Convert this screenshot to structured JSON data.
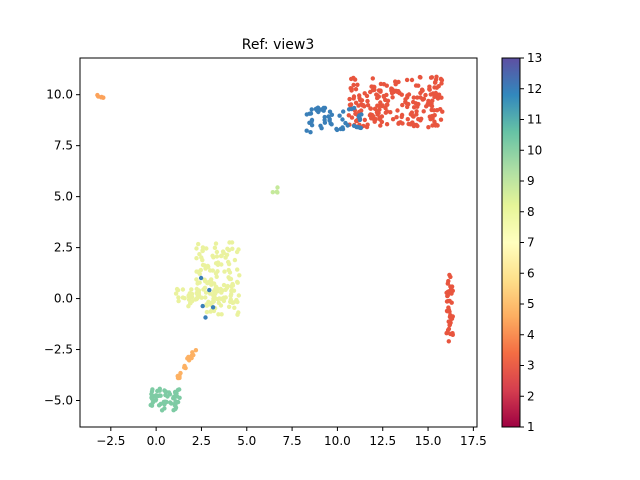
{
  "chart_data": {
    "type": "scatter",
    "title": "Ref: view3",
    "xlabel": "",
    "ylabel": "",
    "xlim": [
      -4.2,
      17.7
    ],
    "ylim": [
      -6.3,
      11.8
    ],
    "xticks": [
      -2.5,
      0.0,
      2.5,
      5.0,
      7.5,
      10.0,
      12.5,
      15.0,
      17.5
    ],
    "xtick_labels": [
      "−2.5",
      "0.0",
      "2.5",
      "5.0",
      "7.5",
      "10.0",
      "12.5",
      "15.0",
      "17.5"
    ],
    "yticks": [
      -5.0,
      -2.5,
      0.0,
      2.5,
      5.0,
      7.5,
      10.0
    ],
    "ytick_labels": [
      "−5.0",
      "−2.5",
      "0.0",
      "2.5",
      "5.0",
      "7.5",
      "10.0"
    ],
    "grid": false,
    "colorbar": {
      "colormap": "Spectral",
      "min": 1,
      "max": 13,
      "ticks": [
        1,
        2,
        3,
        4,
        5,
        6,
        7,
        8,
        9,
        10,
        11,
        12,
        13
      ],
      "tick_labels": [
        "1",
        "2",
        "3",
        "4",
        "5",
        "6",
        "7",
        "8",
        "9",
        "10",
        "11",
        "12",
        "13"
      ],
      "stops": [
        "#9e0142",
        "#d53e4f",
        "#f46d43",
        "#fdae61",
        "#fee08b",
        "#ffffbf",
        "#e6f598",
        "#abdda4",
        "#66c2a5",
        "#3288bd",
        "#5e4fa2"
      ]
    },
    "clusters": [
      {
        "name": "cluster-top-red",
        "value": 3,
        "color": "#e8553e",
        "kind": "box",
        "x": [
          10.6,
          15.8
        ],
        "y": [
          8.4,
          10.9
        ],
        "n": 230
      },
      {
        "name": "cluster-top-blue",
        "value": 12,
        "color": "#3a7fb8",
        "kind": "box",
        "x": [
          8.3,
          11.4
        ],
        "y": [
          8.1,
          9.4
        ],
        "n": 55
      },
      {
        "name": "cluster-right-red",
        "value": 3,
        "color": "#e8553e",
        "kind": "line",
        "from": [
          16.2,
          1.0
        ],
        "to": [
          16.2,
          -2.0
        ],
        "spread": 0.18,
        "n": 45
      },
      {
        "name": "cluster-center-yellow",
        "value": 8,
        "color": "#eaf29e",
        "kind": "box",
        "x": [
          2.2,
          4.6
        ],
        "y": [
          -0.8,
          2.8
        ],
        "n": 130
      },
      {
        "name": "cluster-center-yellow-left",
        "value": 8,
        "color": "#eaf29e",
        "kind": "box",
        "x": [
          1.1,
          3.4
        ],
        "y": [
          -0.4,
          0.5
        ],
        "n": 40
      },
      {
        "name": "cluster-orange-tail",
        "value": 5,
        "color": "#fdb163",
        "kind": "line",
        "from": [
          2.1,
          -2.6
        ],
        "to": [
          1.1,
          -4.0
        ],
        "spread": 0.12,
        "n": 18
      },
      {
        "name": "cluster-bottom-green",
        "value": 10,
        "color": "#7ecba4",
        "kind": "box",
        "x": [
          -0.3,
          1.3
        ],
        "y": [
          -5.5,
          -4.4
        ],
        "n": 60
      },
      {
        "name": "cluster-far-left-orange",
        "value": 5,
        "color": "#fca25a",
        "kind": "box",
        "x": [
          -3.3,
          -2.9
        ],
        "y": [
          9.8,
          10.0
        ],
        "n": 6
      },
      {
        "name": "cluster-mid-tiny",
        "value": 9,
        "color": "#c5e99b",
        "kind": "box",
        "x": [
          6.3,
          6.7
        ],
        "y": [
          5.2,
          5.5
        ],
        "n": 4
      },
      {
        "name": "cluster-blue-stray",
        "value": 12,
        "color": "#3a7fb8",
        "kind": "box",
        "x": [
          2.4,
          3.2
        ],
        "y": [
          -1.1,
          1.9
        ],
        "n": 5
      }
    ]
  }
}
